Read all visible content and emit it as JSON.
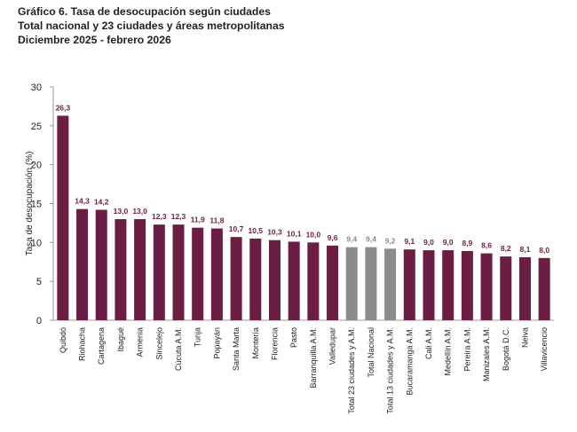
{
  "header": {
    "title": "Gráfico 6. Tasa de desocupación según ciudades",
    "subtitle": "Total nacional y 23 ciudades y áreas metropolitanas",
    "period": "Diciembre 2025 - febrero 2026"
  },
  "colors": {
    "bar_primary": "#6B1D44",
    "bar_secondary": "#8C8C8C",
    "label_primary": "#6B1D44",
    "label_secondary": "#8C8C8C",
    "axis": "#9a9a9a",
    "text": "#222222"
  },
  "chart_data": {
    "type": "bar",
    "title": "",
    "xlabel": "",
    "ylabel": "Tasa de desocupación (%)",
    "ylim": [
      0,
      30
    ],
    "yticks": [
      0,
      5,
      10,
      15,
      20,
      25,
      30
    ],
    "grid": false,
    "categories": [
      "Quibdó",
      "Riohacha",
      "Cartagena",
      "Ibagué",
      "Armenia",
      "Sincelejo",
      "Cúcuta A.M.",
      "Tunja",
      "Popayán",
      "Santa Marta",
      "Montería",
      "Florencia",
      "Pasto",
      "Barranquilla A.M.",
      "Valledupar",
      "Total 23 ciudades y A.M.",
      "Total Nacional",
      "Total 13 ciudades y A.M.",
      "Bucaramanga A.M.",
      "Cali A.M.",
      "Medellín A.M.",
      "Pereira A.M.",
      "Manizales A.M.",
      "Bogotá D.C.",
      "Neiva",
      "Villavicencio"
    ],
    "values": [
      26.3,
      14.3,
      14.2,
      13.0,
      13.0,
      12.3,
      12.3,
      11.9,
      11.8,
      10.7,
      10.5,
      10.3,
      10.1,
      10.0,
      9.6,
      9.4,
      9.4,
      9.2,
      9.1,
      9.0,
      9.0,
      8.9,
      8.6,
      8.2,
      8.1,
      8.0
    ],
    "value_labels": [
      "26,3",
      "14,3",
      "14,2",
      "13,0",
      "13,0",
      "12,3",
      "12,3",
      "11,9",
      "11,8",
      "10,7",
      "10,5",
      "10,3",
      "10,1",
      "10,0",
      "9,6",
      "9,4",
      "9,4",
      "9,2",
      "9,1",
      "9,0",
      "9,0",
      "8,9",
      "8,6",
      "8,2",
      "8,1",
      "8,0"
    ],
    "highlighted": [
      "Total 23 ciudades y A.M.",
      "Total Nacional",
      "Total 13 ciudades y A.M."
    ]
  }
}
